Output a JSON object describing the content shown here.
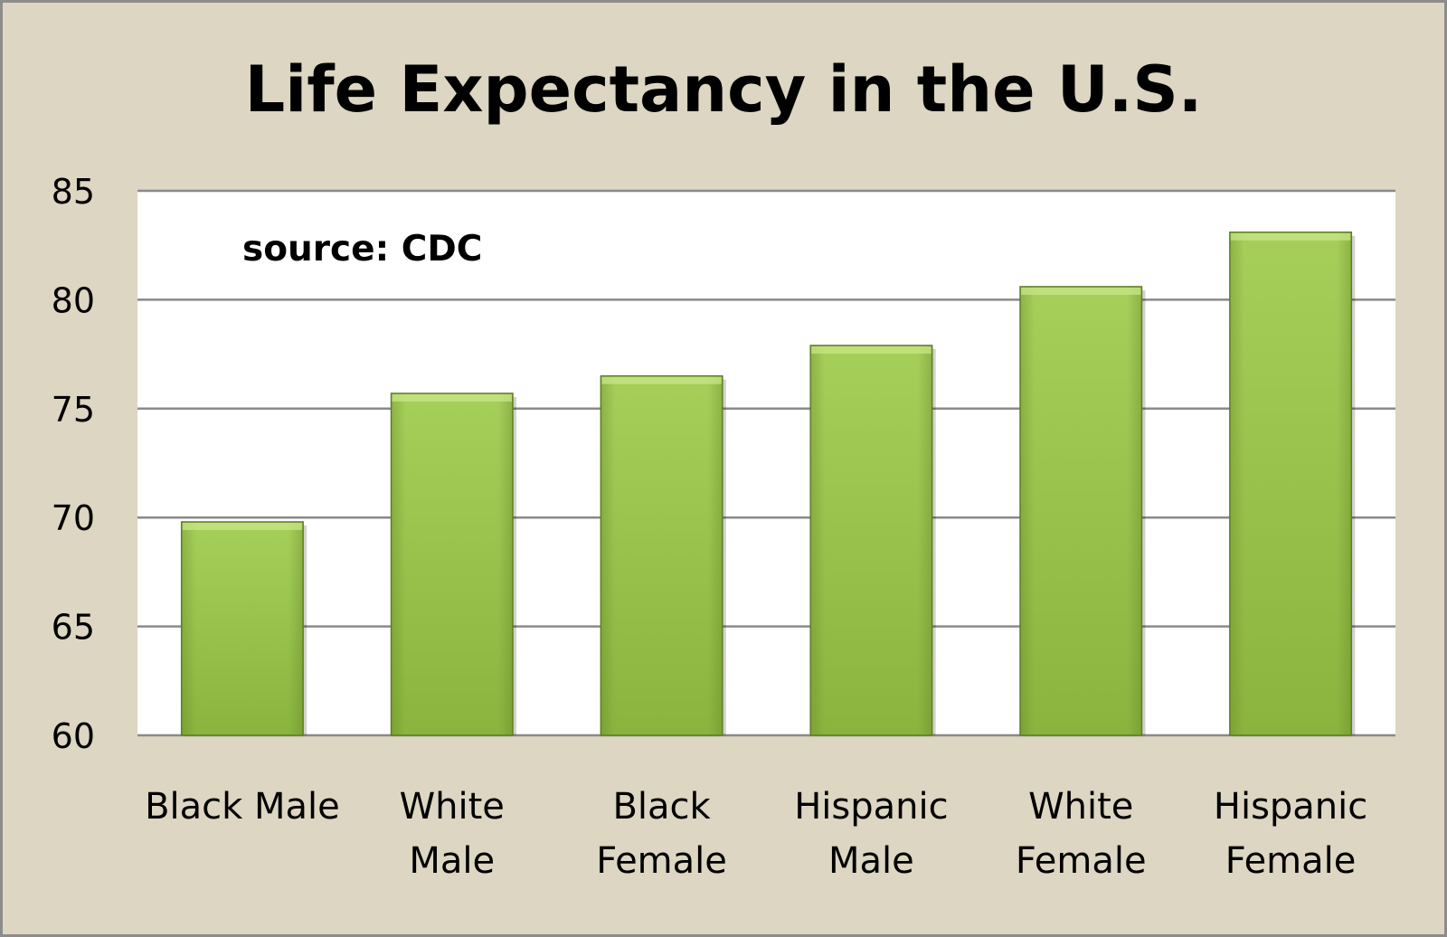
{
  "chart_data": {
    "type": "bar",
    "title": "Life Expectancy in the U.S.",
    "annotation": "source: CDC",
    "categories": [
      "Black Male",
      "White Male",
      "Black Female",
      "Hispanic Male",
      "White Female",
      "Hispanic Female"
    ],
    "category_lines": [
      [
        "Black Male"
      ],
      [
        "White",
        "Male"
      ],
      [
        "Black",
        "Female"
      ],
      [
        "Hispanic",
        "Male"
      ],
      [
        "White",
        "Female"
      ],
      [
        "Hispanic",
        "Female"
      ]
    ],
    "values": [
      69.8,
      75.7,
      76.5,
      77.9,
      80.6,
      83.1
    ],
    "ylim": [
      60,
      85
    ],
    "yticks": [
      60,
      65,
      70,
      75,
      80,
      85
    ],
    "xlabel": "",
    "ylabel": "",
    "grid": true,
    "colors": {
      "frame_background": "#dcd6c2",
      "plot_background": "#ffffff",
      "bar_light": "#a6cf5a",
      "bar_mid": "#8ab43e",
      "bar_dark": "#5e7e22",
      "gridline": "#8a8a8a",
      "text": "#000000"
    }
  }
}
